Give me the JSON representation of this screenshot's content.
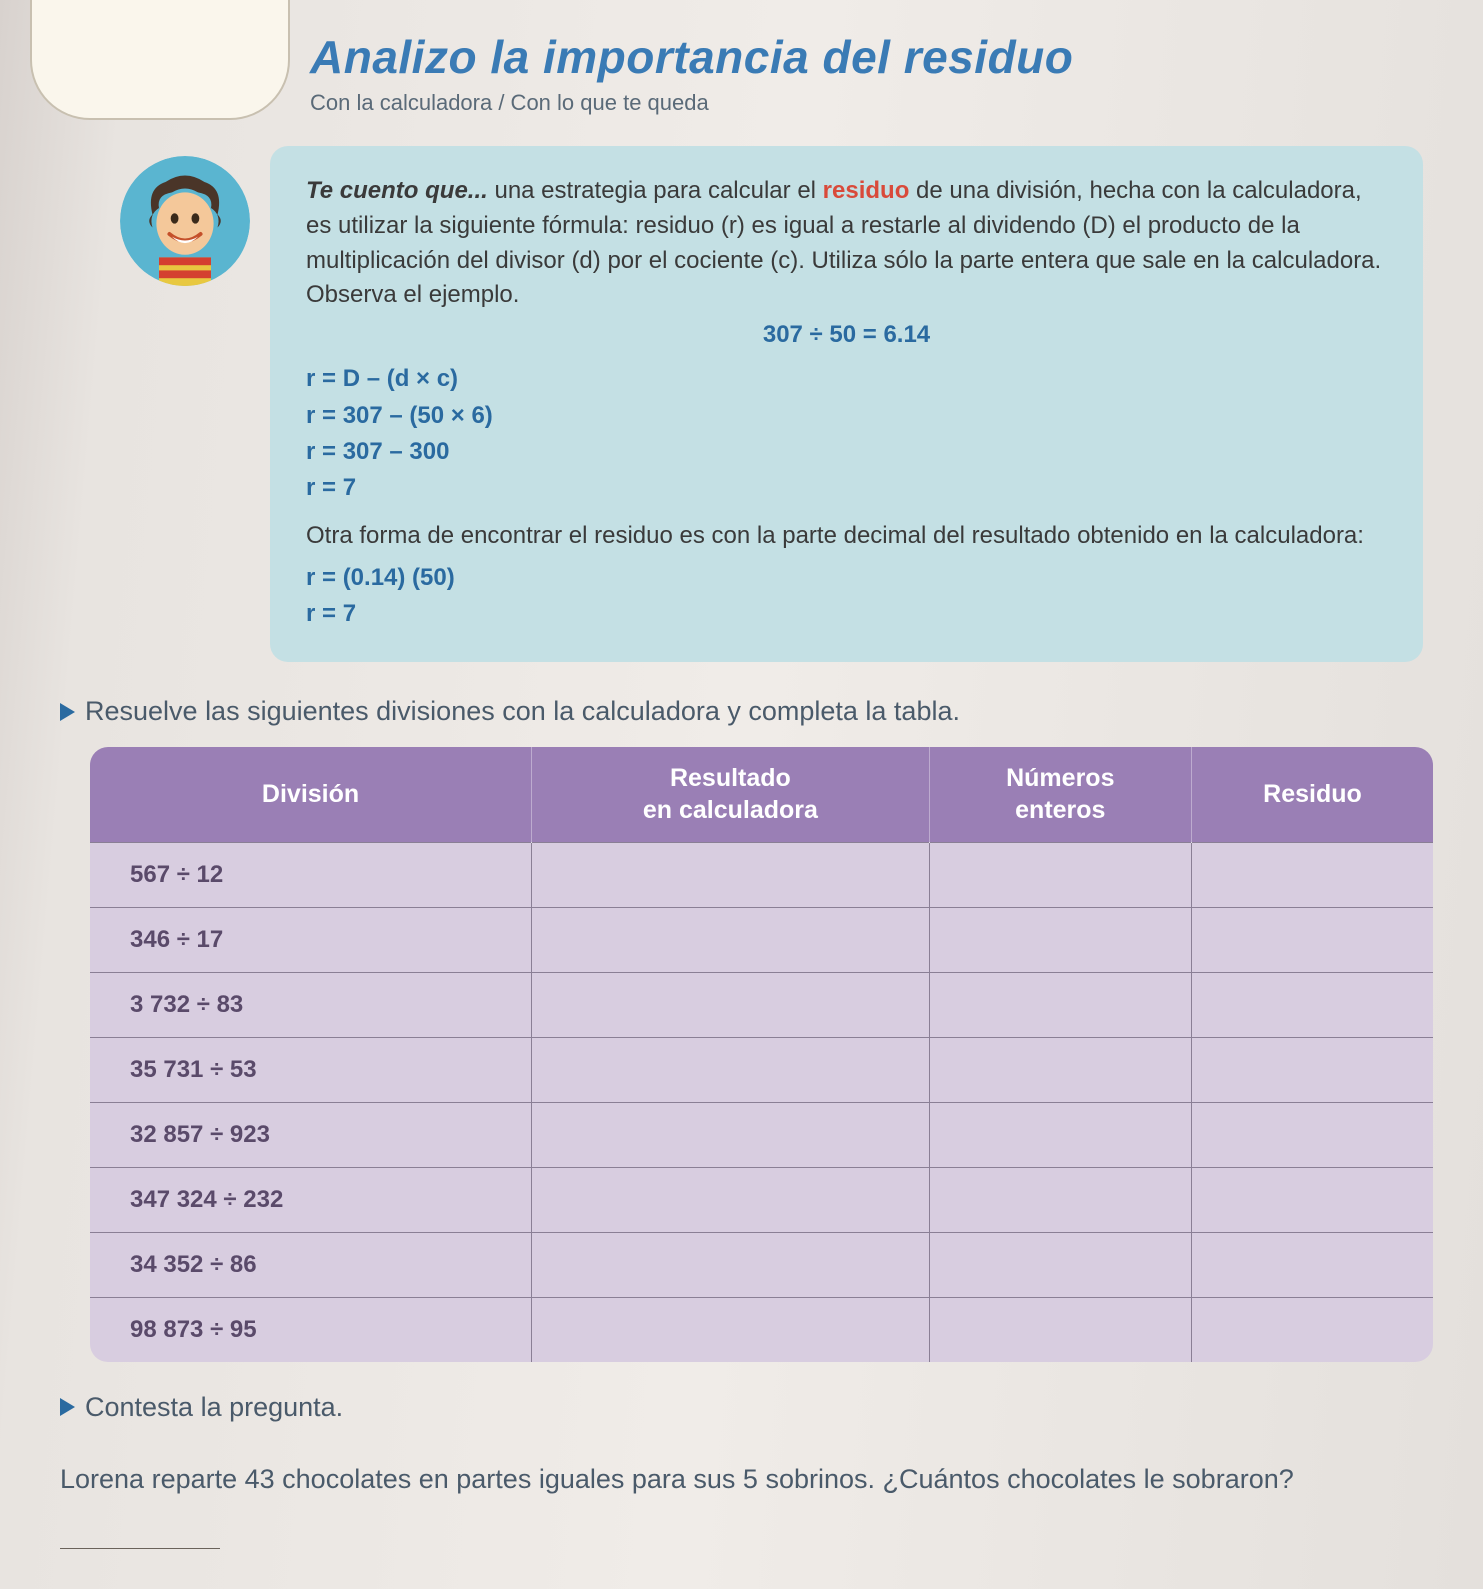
{
  "colors": {
    "title": "#3a7bb5",
    "subtitle": "#5a6a78",
    "info_bg": "#c4e0e4",
    "info_text": "#3a3a3a",
    "residuo_word": "#d94a3a",
    "formula_accent": "#2a6aa0",
    "triangle": "#2a6aa0",
    "instruction_text": "#4a5a6a",
    "table_header_bg": "#9a7fb5",
    "table_header_text": "#ffffff",
    "table_body_bg": "#d8cde0",
    "table_body_text": "#5a4a6a",
    "avatar_bg": "#5ab5d0"
  },
  "header": {
    "title": "Analizo la importancia del residuo",
    "subtitle": "Con la calculadora / Con lo que te queda"
  },
  "info": {
    "lead": "Te cuento que...",
    "body1_a": " una estrategia para calcular el ",
    "residuo_word": "residuo",
    "body1_b": " de una división, hecha con la calculadora, es utilizar la siguiente fórmula: residuo (r) es igual a restarle al dividendo (D) el producto de la multiplicación del divisor (d) por el cociente (c). Utiliza sólo la parte entera que sale en la calculadora. Observa el ejemplo.",
    "example_center": "307 ÷ 50 = 6.14",
    "formulas1": [
      "r = D – (d × c)",
      "r = 307 – (50 × 6)",
      "r = 307 – 300",
      "r = 7"
    ],
    "body2": "Otra forma de encontrar el residuo es con la parte decimal del resultado obtenido en la calculadora:",
    "formulas2": [
      "r = (0.14) (50)",
      "r = 7"
    ]
  },
  "instruction1": "Resuelve las siguientes divisiones con la calculadora y completa la tabla.",
  "table": {
    "headers": [
      "División",
      "Resultado en calculadora",
      "Números enteros",
      "Residuo"
    ],
    "rows": [
      "567 ÷ 12",
      "346 ÷ 17",
      "3 732 ÷ 83",
      "35 731 ÷ 53",
      "32 857 ÷ 923",
      "347 324 ÷ 232",
      "34 352 ÷ 86",
      "98 873 ÷ 95"
    ]
  },
  "instruction2": "Contesta la pregunta.",
  "question": "Lorena reparte 43 chocolates en partes iguales para sus 5 sobrinos. ¿Cuántos chocolates le sobraron?"
}
